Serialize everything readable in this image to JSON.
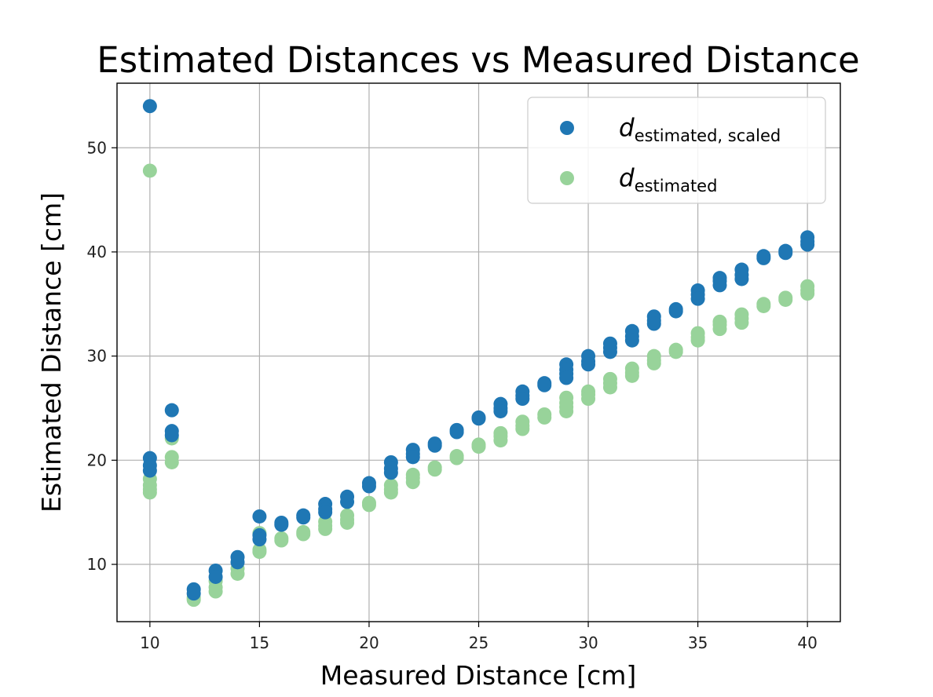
{
  "chart_data": {
    "type": "scatter",
    "title": "Estimated Distances vs Measured Distance",
    "xlabel": "Measured Distance [cm]",
    "ylabel": "Estimated Distance [cm]",
    "xlim": [
      8.5,
      41.5
    ],
    "ylim": [
      4.5,
      56.2
    ],
    "xticks": [
      10,
      15,
      20,
      25,
      30,
      35,
      40
    ],
    "yticks": [
      10,
      20,
      30,
      40,
      50
    ],
    "grid": true,
    "legend_position": "top-right",
    "series": [
      {
        "name": "d_estimated, scaled",
        "legend_main": "d",
        "legend_sub": "estimated, scaled",
        "color": "#1f77b4",
        "points": [
          [
            10,
            54.0
          ],
          [
            10,
            20.2
          ],
          [
            10,
            19.5
          ],
          [
            10,
            19.0
          ],
          [
            11,
            24.8
          ],
          [
            11,
            22.8
          ],
          [
            11,
            22.4
          ],
          [
            12,
            7.6
          ],
          [
            12,
            7.2
          ],
          [
            13,
            9.4
          ],
          [
            13,
            8.8
          ],
          [
            14,
            10.7
          ],
          [
            14,
            10.2
          ],
          [
            15,
            14.6
          ],
          [
            15,
            12.8
          ],
          [
            15,
            12.4
          ],
          [
            16,
            14.0
          ],
          [
            16,
            13.8
          ],
          [
            17,
            14.7
          ],
          [
            17,
            14.5
          ],
          [
            18,
            15.8
          ],
          [
            18,
            15.3
          ],
          [
            18,
            15.0
          ],
          [
            19,
            16.5
          ],
          [
            19,
            16.0
          ],
          [
            20,
            17.8
          ],
          [
            20,
            17.5
          ],
          [
            21,
            19.8
          ],
          [
            21,
            19.2
          ],
          [
            21,
            18.8
          ],
          [
            22,
            21.0
          ],
          [
            22,
            20.6
          ],
          [
            22,
            20.3
          ],
          [
            23,
            21.6
          ],
          [
            23,
            21.4
          ],
          [
            24,
            22.9
          ],
          [
            24,
            22.7
          ],
          [
            25,
            24.1
          ],
          [
            25,
            24.0
          ],
          [
            26,
            25.4
          ],
          [
            26,
            25.0
          ],
          [
            26,
            24.7
          ],
          [
            27,
            26.6
          ],
          [
            27,
            26.2
          ],
          [
            27,
            25.9
          ],
          [
            28,
            27.4
          ],
          [
            28,
            27.2
          ],
          [
            29,
            29.2
          ],
          [
            29,
            28.7
          ],
          [
            29,
            28.3
          ],
          [
            29,
            27.9
          ],
          [
            30,
            30.0
          ],
          [
            30,
            29.5
          ],
          [
            30,
            29.2
          ],
          [
            31,
            31.2
          ],
          [
            31,
            30.8
          ],
          [
            31,
            30.4
          ],
          [
            32,
            32.4
          ],
          [
            32,
            31.9
          ],
          [
            32,
            31.5
          ],
          [
            33,
            33.8
          ],
          [
            33,
            33.4
          ],
          [
            33,
            33.1
          ],
          [
            34,
            34.5
          ],
          [
            34,
            34.3
          ],
          [
            35,
            36.3
          ],
          [
            35,
            35.9
          ],
          [
            35,
            35.5
          ],
          [
            36,
            37.5
          ],
          [
            36,
            37.2
          ],
          [
            36,
            36.8
          ],
          [
            37,
            38.3
          ],
          [
            37,
            37.8
          ],
          [
            37,
            37.4
          ],
          [
            38,
            39.6
          ],
          [
            38,
            39.4
          ],
          [
            39,
            40.1
          ],
          [
            39,
            39.9
          ],
          [
            40,
            41.4
          ],
          [
            40,
            41.0
          ],
          [
            40,
            40.7
          ]
        ]
      },
      {
        "name": "d_estimated",
        "legend_main": "d",
        "legend_sub": "estimated",
        "color": "#98d39a",
        "points": [
          [
            10,
            47.8
          ],
          [
            10,
            18.2
          ],
          [
            10,
            17.6
          ],
          [
            10,
            17.2
          ],
          [
            10,
            16.9
          ],
          [
            11,
            22.1
          ],
          [
            11,
            20.3
          ],
          [
            11,
            19.8
          ],
          [
            12,
            6.8
          ],
          [
            12,
            6.6
          ],
          [
            13,
            8.4
          ],
          [
            13,
            7.8
          ],
          [
            13,
            7.4
          ],
          [
            14,
            9.6
          ],
          [
            14,
            9.1
          ],
          [
            15,
            13.0
          ],
          [
            15,
            11.4
          ],
          [
            15,
            11.2
          ],
          [
            16,
            12.5
          ],
          [
            16,
            12.3
          ],
          [
            17,
            13.1
          ],
          [
            17,
            12.9
          ],
          [
            18,
            14.1
          ],
          [
            18,
            13.7
          ],
          [
            18,
            13.4
          ],
          [
            19,
            14.7
          ],
          [
            19,
            14.3
          ],
          [
            19,
            14.0
          ],
          [
            20,
            15.9
          ],
          [
            20,
            15.7
          ],
          [
            21,
            17.6
          ],
          [
            21,
            17.2
          ],
          [
            21,
            16.9
          ],
          [
            22,
            18.6
          ],
          [
            22,
            18.3
          ],
          [
            22,
            17.9
          ],
          [
            23,
            19.3
          ],
          [
            23,
            19.1
          ],
          [
            24,
            20.4
          ],
          [
            24,
            20.2
          ],
          [
            25,
            21.5
          ],
          [
            25,
            21.3
          ],
          [
            26,
            22.6
          ],
          [
            26,
            22.3
          ],
          [
            26,
            21.9
          ],
          [
            27,
            23.7
          ],
          [
            27,
            23.3
          ],
          [
            27,
            23.0
          ],
          [
            28,
            24.4
          ],
          [
            28,
            24.1
          ],
          [
            29,
            26.0
          ],
          [
            29,
            25.5
          ],
          [
            29,
            25.1
          ],
          [
            29,
            24.7
          ],
          [
            30,
            26.6
          ],
          [
            30,
            26.3
          ],
          [
            30,
            25.9
          ],
          [
            31,
            27.8
          ],
          [
            31,
            27.4
          ],
          [
            31,
            27.0
          ],
          [
            32,
            28.8
          ],
          [
            32,
            28.4
          ],
          [
            32,
            28.1
          ],
          [
            33,
            30.0
          ],
          [
            33,
            29.6
          ],
          [
            33,
            29.3
          ],
          [
            34,
            30.6
          ],
          [
            34,
            30.4
          ],
          [
            35,
            32.2
          ],
          [
            35,
            31.8
          ],
          [
            35,
            31.5
          ],
          [
            36,
            33.3
          ],
          [
            36,
            33.0
          ],
          [
            36,
            32.6
          ],
          [
            37,
            34.0
          ],
          [
            37,
            33.6
          ],
          [
            37,
            33.2
          ],
          [
            38,
            35.0
          ],
          [
            38,
            34.8
          ],
          [
            39,
            35.6
          ],
          [
            39,
            35.4
          ],
          [
            40,
            36.7
          ],
          [
            40,
            36.3
          ],
          [
            40,
            36.0
          ]
        ]
      }
    ]
  }
}
